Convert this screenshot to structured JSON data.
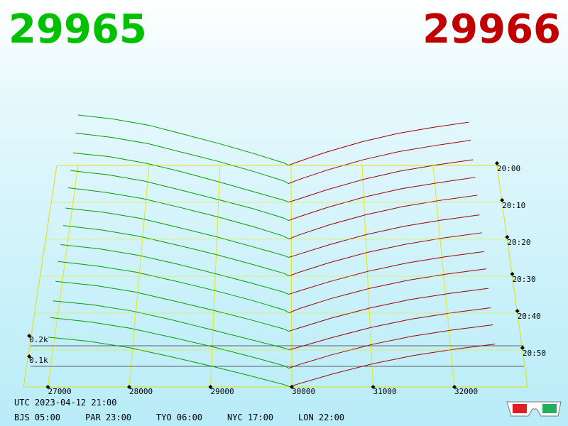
{
  "chart_data": {
    "type": "depth3d",
    "bid_label": "29965",
    "ask_label": "29966",
    "bid_color": "#00a000",
    "ask_color": "#a00000",
    "bid_prices": [
      29965,
      29900,
      29500,
      29000,
      28500,
      28000,
      27500,
      27000
    ],
    "ask_prices": [
      29966,
      30100,
      30500,
      31000,
      31500,
      32000,
      32500
    ],
    "xlim": [
      26700,
      32900
    ],
    "xticks": [
      27000,
      28000,
      29000,
      30000,
      31000,
      32000
    ],
    "tlim": [
      0,
      60
    ],
    "tticks": [
      {
        "value": 0,
        "label": "20:00"
      },
      {
        "value": 10,
        "label": "20:10"
      },
      {
        "value": 20,
        "label": "20:20"
      },
      {
        "value": 30,
        "label": "20:30"
      },
      {
        "value": 40,
        "label": "20:40"
      },
      {
        "value": 50,
        "label": "20:50"
      }
    ],
    "zticks": [
      {
        "value": 100,
        "label": "0.1k"
      },
      {
        "value": 200,
        "label": "0.2k"
      }
    ],
    "snapshots": [
      {
        "t": 0,
        "bids": [
          1,
          12,
          55,
          105,
          150,
          195,
          225,
          245
        ],
        "asks": [
          1,
          18,
          65,
          115,
          155,
          185,
          210
        ]
      },
      {
        "t": 5,
        "bids": [
          1,
          14,
          58,
          108,
          152,
          196,
          226,
          247
        ],
        "asks": [
          2,
          20,
          67,
          117,
          157,
          186,
          212
        ]
      },
      {
        "t": 10,
        "bids": [
          2,
          10,
          50,
          100,
          148,
          190,
          222,
          240
        ],
        "asks": [
          1,
          16,
          62,
          112,
          152,
          182,
          207
        ]
      },
      {
        "t": 15,
        "bids": [
          1,
          13,
          57,
          104,
          149,
          193,
          224,
          244
        ],
        "asks": [
          2,
          19,
          66,
          116,
          156,
          185,
          211
        ]
      },
      {
        "t": 20,
        "bids": [
          2,
          15,
          60,
          110,
          155,
          198,
          228,
          250
        ],
        "asks": [
          1,
          21,
          69,
          119,
          159,
          189,
          214
        ]
      },
      {
        "t": 25,
        "bids": [
          1,
          11,
          52,
          102,
          147,
          191,
          221,
          241
        ],
        "asks": [
          2,
          17,
          63,
          113,
          153,
          183,
          208
        ]
      },
      {
        "t": 30,
        "bids": [
          2,
          14,
          56,
          106,
          151,
          194,
          225,
          246
        ],
        "asks": [
          1,
          19,
          66,
          116,
          155,
          186,
          211
        ]
      },
      {
        "t": 35,
        "bids": [
          1,
          12,
          54,
          103,
          150,
          192,
          223,
          243
        ],
        "asks": [
          2,
          18,
          64,
          114,
          154,
          184,
          209
        ]
      },
      {
        "t": 40,
        "bids": [
          2,
          16,
          61,
          111,
          156,
          199,
          229,
          251
        ],
        "asks": [
          1,
          22,
          70,
          120,
          160,
          190,
          215
        ]
      },
      {
        "t": 45,
        "bids": [
          1,
          13,
          55,
          104,
          149,
          193,
          224,
          244
        ],
        "asks": [
          2,
          18,
          65,
          115,
          155,
          185,
          210
        ]
      },
      {
        "t": 50,
        "bids": [
          2,
          10,
          49,
          98,
          146,
          189,
          220,
          239
        ],
        "asks": [
          1,
          15,
          60,
          110,
          150,
          180,
          205
        ]
      },
      {
        "t": 55,
        "bids": [
          1,
          14,
          57,
          107,
          152,
          195,
          226,
          247
        ],
        "asks": [
          2,
          20,
          67,
          117,
          157,
          187,
          212
        ]
      },
      {
        "t": 60,
        "bids": [
          2,
          12,
          53,
          102,
          148,
          191,
          222,
          242
        ],
        "asks": [
          1,
          17,
          63,
          113,
          153,
          183,
          208
        ]
      }
    ],
    "footer": {
      "utc": "UTC 2023-04-12 21:00",
      "zones": [
        "BJS 05:00",
        "PAR 23:00",
        "TYO 06:00",
        "NYC 17:00",
        "LON 22:00"
      ]
    }
  }
}
